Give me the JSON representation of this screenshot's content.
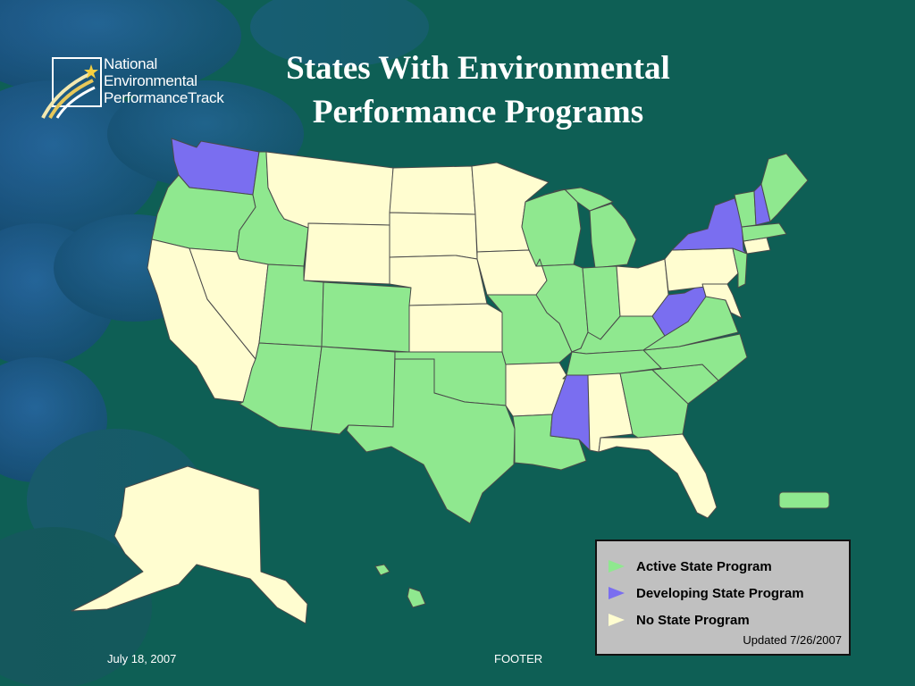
{
  "logo": {
    "line1": "National",
    "line2": "Environmental",
    "line3": "PerformanceTrack"
  },
  "title": {
    "line1": "States With Environmental",
    "line2": "Performance Programs"
  },
  "legend": {
    "items": [
      {
        "label": "Active State Program",
        "color": "#8fe88f"
      },
      {
        "label": "Developing State Program",
        "color": "#7a6ef0"
      },
      {
        "label": "No State Program",
        "color": "#fffdd0"
      }
    ],
    "updated": "Updated 7/26/2007"
  },
  "colors": {
    "background": "#0e5f55",
    "active": "#8fe88f",
    "developing": "#7a6ef0",
    "none": "#fffdd0",
    "border": "#555555"
  },
  "footer": {
    "date": "July 18, 2007",
    "text": "FOOTER"
  }
}
